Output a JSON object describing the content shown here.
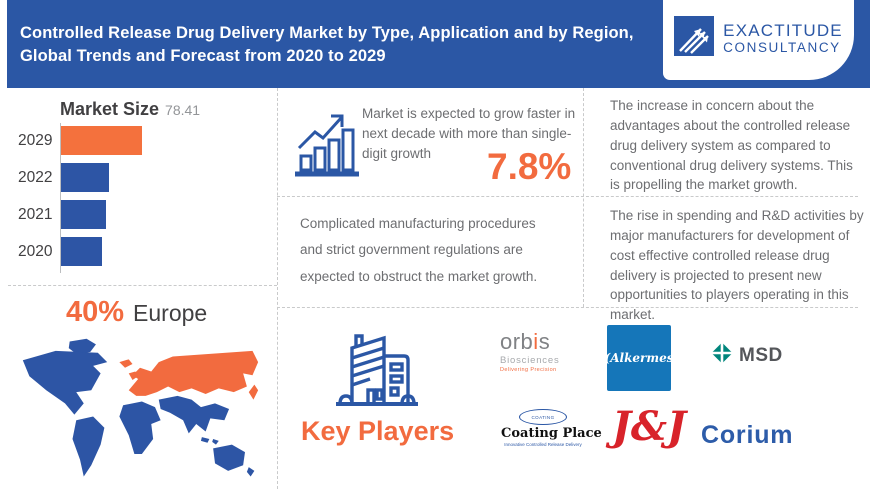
{
  "header": {
    "title_line1": "Controlled Release Drug Delivery Market by Type, Application and by Region,",
    "title_line2": "Global Trends and Forecast from 2020 to 2029",
    "logo": {
      "name_top": "EXACTITUDE",
      "name_bottom": "CONSULTANCY"
    }
  },
  "market_size": {
    "title": "Market Size",
    "value_label": "78.41"
  },
  "chart_data": {
    "type": "bar",
    "orientation": "horizontal",
    "title": "Market Size",
    "categories": [
      "2029",
      "2022",
      "2021",
      "2020"
    ],
    "values": [
      78.41,
      47,
      44,
      40
    ],
    "value_labels_shown": [
      "78.41"
    ],
    "bar_colors": [
      "#f4713d",
      "#2d55a5",
      "#2d55a5",
      "#2d55a5"
    ],
    "xlim": [
      0,
      85
    ],
    "grid": false,
    "legend": "none"
  },
  "region": {
    "value": "40%",
    "label": "Europe"
  },
  "growth": {
    "text": "Market is expected to grow faster in next decade with more than single-digit growth",
    "value": "7.8%"
  },
  "driver": {
    "text": "The increase in concern about the advantages about the controlled release drug delivery system as compared to conventional drug delivery systems. This is propelling the market growth."
  },
  "restraint": {
    "text": "Complicated manufacturing procedures and strict government regulations are expected to obstruct the market growth."
  },
  "opportunity": {
    "text": "The rise in spending and R&D activities by major manufacturers for development of cost effective controlled release drug delivery is projected to present new opportunities to players operating in this market."
  },
  "key_players": {
    "label": "Key Players",
    "logos": {
      "orbis": {
        "word_start": "orb",
        "word_accent": "i",
        "word_end": "s",
        "sub": "Biosciences",
        "tagline": "Delivering Precision"
      },
      "alkermes": {
        "text": "(Alkermes"
      },
      "msd": {
        "text": "MSD"
      },
      "coating_place": {
        "oval_text": "COATING",
        "name": "Coating Place",
        "tagline": "Innovative Controlled Release Delivery"
      },
      "jnj": {
        "text": "J&J"
      },
      "corium": {
        "text": "Corium"
      }
    }
  },
  "colors": {
    "primary_blue": "#2b57a5",
    "bar_blue": "#2d55a5",
    "accent_orange": "#f26b3f",
    "alkermes_blue": "#1576b9",
    "msd_teal": "#00857c",
    "jnj_red": "#d8232a",
    "corium_blue": "#2d5ca9"
  }
}
